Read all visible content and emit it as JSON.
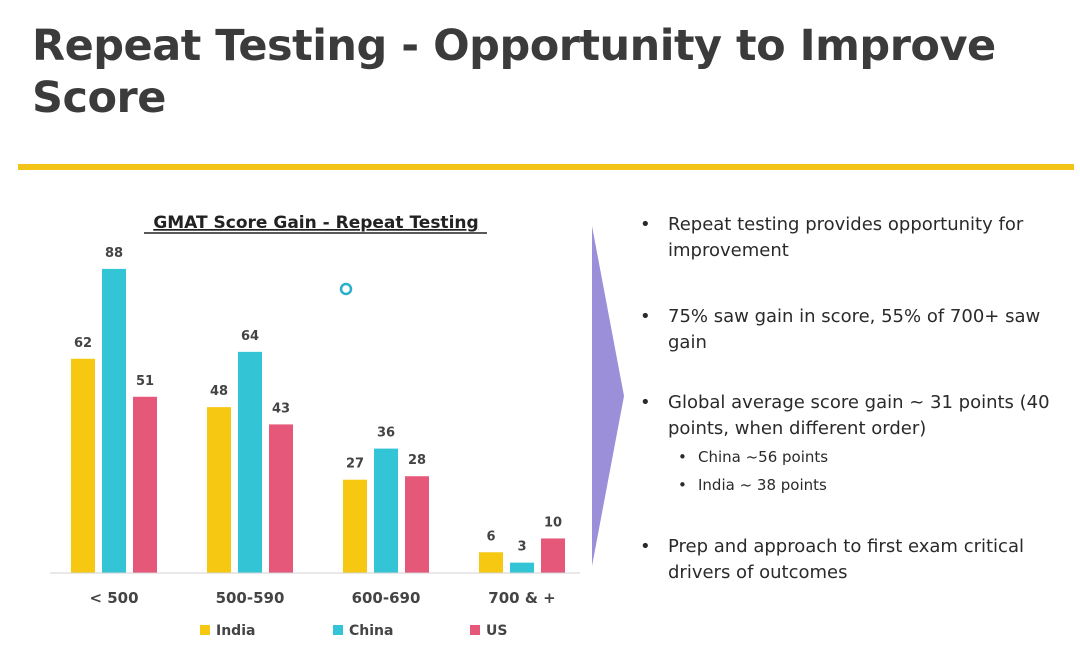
{
  "slide": {
    "title": "Repeat Testing - Opportunity to Improve Score"
  },
  "colors": {
    "accent_rule": "#f2c417",
    "chevron": "#9b8fd9"
  },
  "bullets": [
    {
      "text": "Repeat testing provides opportunity for improvement",
      "sub": []
    },
    {
      "text": "75% saw gain in score, 55% of 700+ saw gain",
      "sub": []
    },
    {
      "text": "Global average score gain ~ 31 points (40 points, when different order)",
      "sub": [
        "China ~56 points",
        "India ~ 38 points"
      ]
    },
    {
      "text": "Prep and approach to first exam critical drivers of outcomes",
      "sub": []
    }
  ],
  "chart_data": {
    "type": "bar",
    "title": "GMAT Score Gain - Repeat Testing",
    "categories": [
      "< 500",
      "500-590",
      "600-690",
      "700 & +"
    ],
    "series": [
      {
        "name": "India",
        "values": [
          62,
          48,
          27,
          6
        ],
        "color": "#f7c812"
      },
      {
        "name": "China",
        "values": [
          88,
          64,
          36,
          3
        ],
        "color": "#33c4d6"
      },
      {
        "name": "US",
        "values": [
          51,
          43,
          28,
          10
        ],
        "color": "#e6587a"
      }
    ],
    "ylim": [
      0,
      90
    ],
    "xlabel": "",
    "ylabel": "",
    "grid": false,
    "legend": "bottom",
    "data_labels": true
  }
}
